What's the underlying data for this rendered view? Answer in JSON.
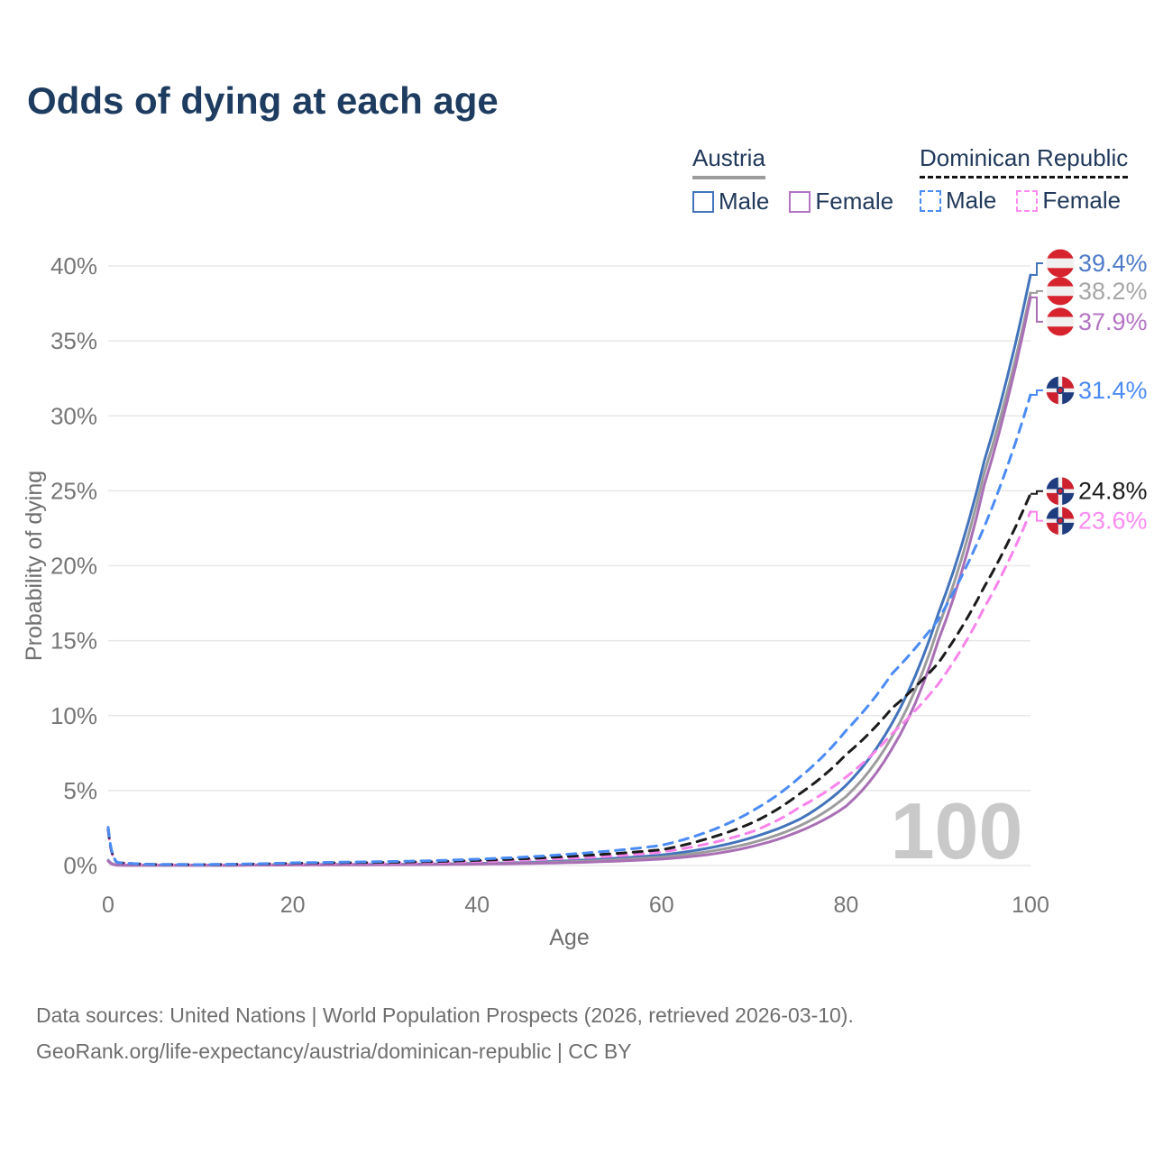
{
  "page": {
    "title": "Odds of dying at each age"
  },
  "legend": {
    "austria": {
      "title": "Austria",
      "male": "Male",
      "female": "Female"
    },
    "dominican_republic": {
      "title": "Dominican Republic",
      "male": "Male",
      "female": "Female"
    }
  },
  "footer": {
    "line1": "Data sources: United Nations | World Population Prospects (2026, retrieved 2026-03-10).",
    "line2": "GeoRank.org/life-expectancy/austria/dominican-republic | CC BY"
  },
  "chart_data": {
    "type": "line",
    "title": "Odds of dying at each age",
    "xlabel": "Age",
    "ylabel": "Probability of dying",
    "xlim": [
      0,
      100
    ],
    "ylim": [
      0,
      40
    ],
    "xticks": [
      0,
      20,
      40,
      60,
      80,
      100
    ],
    "ytick_step_pct": 5,
    "ytick_labels": [
      "0%",
      "5%",
      "10%",
      "15%",
      "20%",
      "25%",
      "30%",
      "35%",
      "40%"
    ],
    "grid": "horizontal",
    "legend_position": "top-right",
    "watermark": "100",
    "ages": [
      0,
      1,
      5,
      10,
      15,
      20,
      25,
      30,
      35,
      40,
      45,
      50,
      55,
      60,
      65,
      70,
      75,
      80,
      85,
      90,
      95,
      100
    ],
    "series": [
      {
        "name": "Austria Male",
        "color": "#4374bb",
        "label_color": "#4d7bc7",
        "dashed": false,
        "flag": "austria",
        "end_label": "39.4%",
        "end_value": 39.4,
        "label_dy": -13,
        "values": [
          0.35,
          0.03,
          0.01,
          0.01,
          0.03,
          0.06,
          0.07,
          0.08,
          0.1,
          0.14,
          0.2,
          0.32,
          0.48,
          0.7,
          1.15,
          1.9,
          3.1,
          5.35,
          9.5,
          16.8,
          27.0,
          39.4
        ]
      },
      {
        "name": "Austria Both sexes",
        "color": "#9c9c9c",
        "label_color": "#a6a6a6",
        "dashed": false,
        "flag": "austria",
        "end_label": "38.2%",
        "end_value": 38.2,
        "label_dy": -2,
        "values": [
          0.32,
          0.03,
          0.01,
          0.01,
          0.03,
          0.05,
          0.05,
          0.06,
          0.08,
          0.11,
          0.16,
          0.25,
          0.38,
          0.56,
          0.92,
          1.55,
          2.65,
          4.6,
          8.6,
          15.9,
          26.2,
          38.2
        ]
      },
      {
        "name": "Austria Female",
        "color": "#a96fb5",
        "label_color": "#b374c4",
        "dashed": false,
        "flag": "austria",
        "end_label": "37.9%",
        "end_value": 37.9,
        "label_dy": 27,
        "values": [
          0.3,
          0.02,
          0.01,
          0.01,
          0.02,
          0.03,
          0.04,
          0.05,
          0.06,
          0.09,
          0.13,
          0.19,
          0.29,
          0.43,
          0.72,
          1.3,
          2.3,
          3.95,
          7.8,
          15.0,
          25.4,
          37.9
        ]
      },
      {
        "name": "Dominican Republic Female",
        "color": "#f883ea",
        "label_color": "#fb8bf1",
        "dashed": true,
        "flag": "dominican",
        "end_label": "23.6%",
        "end_value": 23.6,
        "label_dy": 10,
        "values": [
          2.35,
          0.18,
          0.06,
          0.05,
          0.08,
          0.11,
          0.13,
          0.16,
          0.2,
          0.27,
          0.36,
          0.48,
          0.63,
          0.9,
          1.45,
          2.3,
          3.9,
          5.9,
          8.8,
          12.1,
          17.2,
          23.6
        ]
      },
      {
        "name": "Dominican Republic Both sexes",
        "color": "#1b1b1b",
        "label_color": "#1b1b1b",
        "dashed": true,
        "flag": "dominican",
        "end_label": "24.8%",
        "end_value": 24.8,
        "label_dy": -3,
        "values": [
          2.45,
          0.19,
          0.07,
          0.06,
          0.09,
          0.15,
          0.18,
          0.21,
          0.26,
          0.34,
          0.45,
          0.61,
          0.8,
          1.05,
          1.8,
          2.9,
          4.8,
          7.4,
          10.5,
          13.5,
          18.6,
          24.8
        ]
      },
      {
        "name": "Dominican Republic Male",
        "color": "#4b8bf4",
        "label_color": "#4b8bf4",
        "dashed": true,
        "flag": "dominican",
        "end_label": "31.4%",
        "end_value": 31.4,
        "label_dy": -5,
        "values": [
          2.55,
          0.2,
          0.07,
          0.06,
          0.1,
          0.18,
          0.22,
          0.26,
          0.32,
          0.42,
          0.56,
          0.76,
          1.0,
          1.35,
          2.25,
          3.7,
          5.9,
          9.0,
          12.8,
          16.4,
          22.6,
          31.4
        ]
      }
    ],
    "style": {
      "grid_color": "#e8e8e8",
      "tick_color": "#767676",
      "axis_title_color": "#6f6f6f",
      "watermark_color": "#c9c9c9",
      "austria_flag_red": "#d6232e",
      "austria_flag_white": "#f0f0f0",
      "dominican_flag_blue": "#1e3c7e",
      "dominican_flag_red": "#ce2130"
    }
  }
}
